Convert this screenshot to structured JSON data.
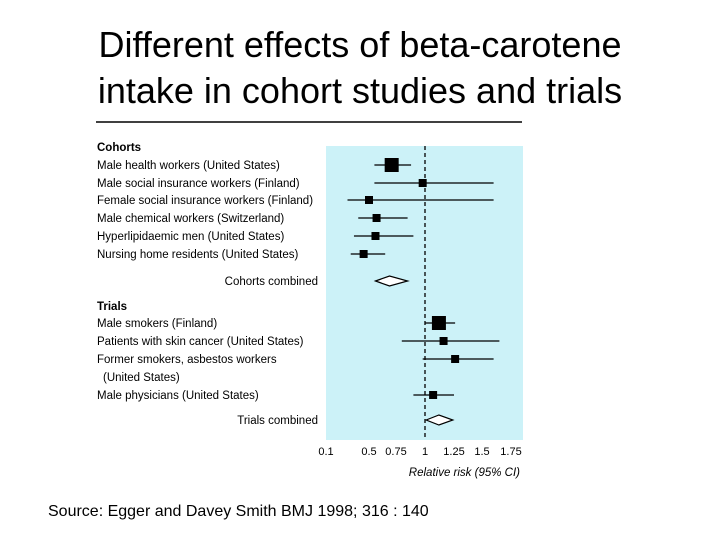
{
  "slide": {
    "title_line1": "Different effects of beta-carotene",
    "title_line2": "intake in cohort studies and trials",
    "source": "Source: Egger and Davey Smith BMJ 1998; 316 : 140"
  },
  "colors": {
    "panel_bg": "#ccf2f8",
    "ink": "#000000",
    "ref_line": "#000000"
  },
  "chart_data": {
    "type": "forest",
    "xlabel": "Relative risk (95% CI)",
    "xscale": "log",
    "xlim": [
      0.1,
      1.75
    ],
    "reference_value": 1,
    "xticks": [
      0.1,
      0.5,
      0.75,
      1,
      1.25,
      1.5,
      1.75
    ],
    "xtick_labels": [
      "0.1",
      "0.5",
      "0.75",
      "1",
      "1.25",
      "1.5",
      "1.75"
    ],
    "groups": [
      {
        "name": "Cohorts",
        "studies": [
          {
            "label": "Male health workers (United States)",
            "rr": 0.71,
            "lo": 0.55,
            "hi": 0.88,
            "weight": "large"
          },
          {
            "label": "Male social insurance workers (Finland)",
            "rr": 0.98,
            "lo": 0.55,
            "hi": 1.6,
            "weight": "small"
          },
          {
            "label": "Female social insurance workers (Finland)",
            "rr": 0.5,
            "lo": 0.3,
            "hi": 1.6,
            "weight": "small"
          },
          {
            "label": "Male chemical workers (Switzerland)",
            "rr": 0.57,
            "lo": 0.4,
            "hi": 0.85,
            "weight": "small"
          },
          {
            "label": "Hyperlipidaemic men (United States)",
            "rr": 0.56,
            "lo": 0.36,
            "hi": 0.9,
            "weight": "small"
          },
          {
            "label": "Nursing home residents (United States)",
            "rr": 0.45,
            "lo": 0.33,
            "hi": 0.65,
            "weight": "small"
          }
        ],
        "combined_label": "Cohorts combined",
        "combined": {
          "rr": 0.69,
          "lo": 0.56,
          "hi": 0.85
        }
      },
      {
        "name": "Trials",
        "studies": [
          {
            "label": "Male smokers (Finland)",
            "rr": 1.12,
            "lo": 1.0,
            "hi": 1.26,
            "weight": "large"
          },
          {
            "label": "Patients with skin cancer (United States)",
            "rr": 1.16,
            "lo": 0.8,
            "hi": 1.65,
            "weight": "small"
          },
          {
            "label": "Former smokers, asbestos workers",
            "label2": "(United States)",
            "rr": 1.26,
            "lo": 0.98,
            "hi": 1.6,
            "weight": "small"
          },
          {
            "label": "Male physicians (United States)",
            "rr": 1.07,
            "lo": 0.9,
            "hi": 1.25,
            "weight": "small"
          }
        ],
        "combined_label": "Trials combined",
        "combined": {
          "rr": 1.12,
          "lo": 1.01,
          "hi": 1.24
        }
      }
    ]
  }
}
